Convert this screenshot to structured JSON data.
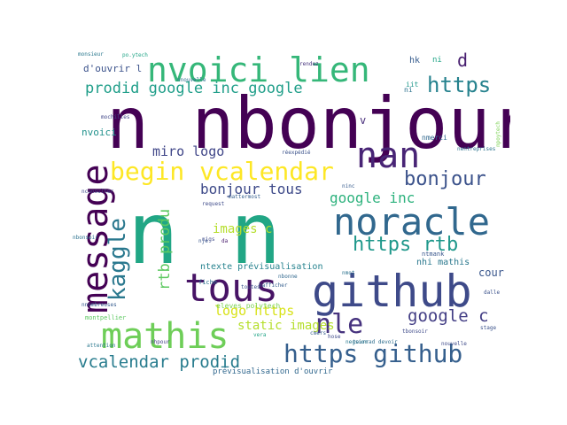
{
  "words": [
    {
      "text": "n nbonjour",
      "color": "#440154"
    },
    {
      "text": "n n",
      "color": "#21a685"
    },
    {
      "text": "nvoici lien",
      "color": "#35b779"
    },
    {
      "text": "nan",
      "color": "#482475"
    },
    {
      "text": "noracle",
      "color": "#31688e"
    },
    {
      "text": "github",
      "color": "#3e4a89"
    },
    {
      "text": "message",
      "color": "#440154"
    },
    {
      "text": "tous",
      "color": "#471365"
    },
    {
      "text": "mathis",
      "color": "#6ece58"
    },
    {
      "text": "kaggle",
      "color": "#2a788e"
    },
    {
      "text": "begin vcalendar",
      "color": "#fde725"
    },
    {
      "text": "prodid google inc google",
      "color": "#1f9e89"
    },
    {
      "text": "https",
      "color": "#26828e"
    },
    {
      "text": "bonjour",
      "color": "#3b528b"
    },
    {
      "text": "google inc",
      "color": "#2db27d"
    },
    {
      "text": "https rtb",
      "color": "#1f988b"
    },
    {
      "text": "nle",
      "color": "#46327e"
    },
    {
      "text": "https github",
      "color": "#355f8d"
    },
    {
      "text": "vcalendar prodid",
      "color": "#287c8e"
    },
    {
      "text": "google c",
      "color": "#433e85"
    },
    {
      "text": "bonjour tous",
      "color": "#3e4a89"
    },
    {
      "text": "miro logo",
      "color": "#404688"
    },
    {
      "text": "rtb produ",
      "color": "#5ec962"
    },
    {
      "text": "images c",
      "color": "#b5de2b"
    },
    {
      "text": "logo https",
      "color": "#d8e219"
    },
    {
      "text": "static images",
      "color": "#b5de2b"
    },
    {
      "text": "ntexte prévisualisation",
      "color": "#26828e"
    },
    {
      "text": "nhi mathis",
      "color": "#2a788e"
    },
    {
      "text": "d'ouvrir l",
      "color": "#3b528b"
    },
    {
      "text": "cour",
      "color": "#39568c"
    },
    {
      "text": "eleves polytech",
      "color": "#7ad151"
    },
    {
      "text": "prévisualisation d'ouvrir",
      "color": "#31688e"
    },
    {
      "text": "nvoici",
      "color": "#21918c"
    },
    {
      "text": "hk",
      "color": "#365c8d"
    },
    {
      "text": "ni",
      "color": "#20a486"
    },
    {
      "text": "d",
      "color": "#481f70"
    },
    {
      "text": "ni",
      "color": "#2c728e"
    },
    {
      "text": "po.ytech",
      "color": "#20a486"
    },
    {
      "text": "monsieur",
      "color": "#2a788e"
    },
    {
      "text": "rendez",
      "color": "#46337e"
    },
    {
      "text": "nmerci",
      "color": "#31688e"
    },
    {
      "text": "montpellier",
      "color": "#5ec962"
    },
    {
      "text": "tbonsoir",
      "color": "#3e4a89"
    },
    {
      "text": "nnouvelle",
      "color": "#2e6e8e"
    },
    {
      "text": "nouvelle",
      "color": "#3e4a89"
    },
    {
      "text": "attention",
      "color": "#2a788e"
    },
    {
      "text": "nafficher",
      "color": "#355f8d"
    },
    {
      "text": "fiche",
      "color": "#2c728e"
    },
    {
      "text": "toutes",
      "color": "#3b528b"
    },
    {
      "text": "mattermost",
      "color": "#355f8d"
    },
    {
      "text": "nnombreuses",
      "color": "#365c8d"
    },
    {
      "text": "nconsulter",
      "color": "#3e4a89"
    },
    {
      "text": "ntmank",
      "color": "#39568c"
    },
    {
      "text": "request",
      "color": "#3e4a89"
    },
    {
      "text": "nbonsoir",
      "color": "#2c728e"
    },
    {
      "text": "nbonne",
      "color": "#31688e"
    },
    {
      "text": "stage",
      "color": "#3b528b"
    },
    {
      "text": "v",
      "color": "#472d7b"
    },
    {
      "text": "vera",
      "color": "#20a486"
    },
    {
      "text": "dalle",
      "color": "#3b528b"
    },
    {
      "text": "nje",
      "color": "#39568c"
    },
    {
      "text": "da",
      "color": "#481b6d"
    },
    {
      "text": "nentreprises",
      "color": "#2c728e"
    },
    {
      "text": "npoytech",
      "color": "#7ad151"
    },
    {
      "text": "réexpédié",
      "color": "#3b528b"
    },
    {
      "text": "ninc",
      "color": "#365c8d"
    },
    {
      "text": "nmot",
      "color": "#2c728e"
    },
    {
      "text": "iit",
      "color": "#1f988b"
    },
    {
      "text": "hose",
      "color": "#3e4a89"
    },
    {
      "text": "nhpour",
      "color": "#433e85"
    },
    {
      "text": "cmers",
      "color": "#355f8d"
    },
    {
      "text": "mochilles",
      "color": "#404688"
    },
    {
      "text": "negsion",
      "color": "#2a788e"
    },
    {
      "text": "tourrad devoir",
      "color": "#2e6e8e"
    },
    {
      "text": "nigs",
      "color": "#3e4a89"
    }
  ]
}
